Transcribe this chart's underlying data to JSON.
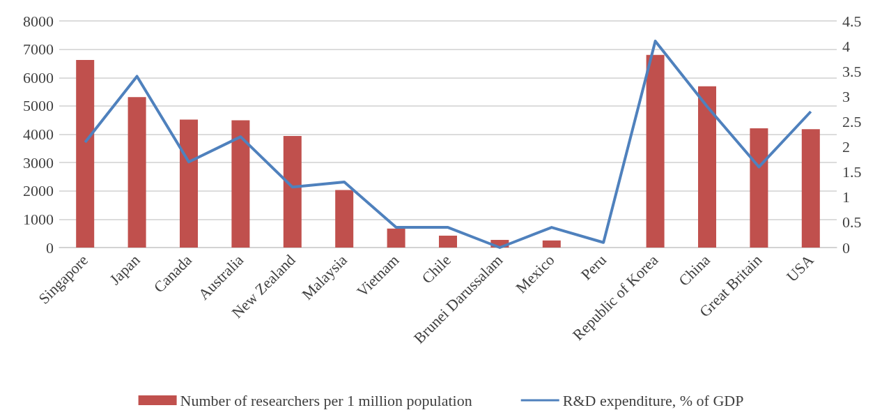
{
  "chart_data": {
    "type": "bar",
    "categories": [
      "Singapore",
      "Japan",
      "Canada",
      "Australia",
      "New Zealand",
      "Malaysia",
      "Vietnam",
      "Chile",
      "Brunei Darussalam",
      "Mexico",
      "Peru",
      "Republic of Korea",
      "China",
      "Great Britain",
      "USA"
    ],
    "series": [
      {
        "name": "Number of researchers per 1 million population",
        "color": "#c0504d",
        "values": [
          6620,
          5310,
          4520,
          4490,
          3940,
          2030,
          670,
          420,
          270,
          250,
          0,
          6800,
          5690,
          4210,
          4180
        ]
      },
      {
        "name": "R&D expenditure, % of GDP",
        "type": "line",
        "axis": "y2",
        "color": "#4f81bd",
        "values": [
          2.09,
          3.4,
          1.7,
          2.2,
          1.2,
          1.3,
          0.4,
          0.4,
          0.0,
          0.4,
          0.1,
          4.1,
          2.8,
          1.6,
          2.7
        ]
      }
    ],
    "ylim": [
      0,
      8000
    ],
    "yticks": [
      0,
      1000,
      2000,
      3000,
      4000,
      5000,
      6000,
      7000,
      8000
    ],
    "y2lim": [
      0,
      4.5
    ],
    "y2ticks": [
      0,
      0.5,
      1,
      1.5,
      2,
      2.5,
      3,
      3.5,
      4,
      4.5
    ],
    "grid": "y",
    "legend": "bottom",
    "marker": "none"
  }
}
